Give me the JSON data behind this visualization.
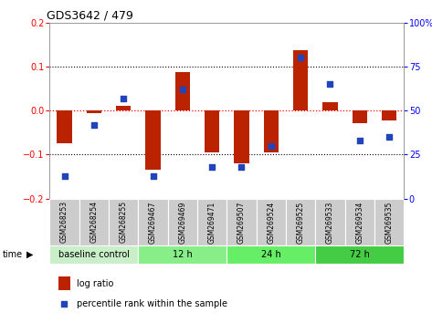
{
  "title": "GDS3642 / 479",
  "samples": [
    "GSM268253",
    "GSM268254",
    "GSM268255",
    "GSM269467",
    "GSM269469",
    "GSM269471",
    "GSM269507",
    "GSM269524",
    "GSM269525",
    "GSM269533",
    "GSM269534",
    "GSM269535"
  ],
  "log_ratio": [
    -0.075,
    -0.005,
    0.01,
    -0.135,
    0.088,
    -0.095,
    -0.12,
    -0.095,
    0.138,
    0.02,
    -0.028,
    -0.022
  ],
  "percentile_rank": [
    13,
    42,
    57,
    13,
    62,
    18,
    18,
    30,
    80,
    65,
    33,
    35
  ],
  "groups": [
    {
      "label": "baseline control",
      "start": 0,
      "end": 3,
      "color": "#c8efc8"
    },
    {
      "label": "12 h",
      "start": 3,
      "end": 6,
      "color": "#88ee88"
    },
    {
      "label": "24 h",
      "start": 6,
      "end": 9,
      "color": "#66ee66"
    },
    {
      "label": "72 h",
      "start": 9,
      "end": 12,
      "color": "#44cc44"
    }
  ],
  "ylim_left": [
    -0.2,
    0.2
  ],
  "ylim_right": [
    0,
    100
  ],
  "yticks_left": [
    -0.2,
    -0.1,
    0,
    0.1,
    0.2
  ],
  "yticks_right": [
    0,
    25,
    50,
    75,
    100
  ],
  "bar_color": "#bb2200",
  "dot_color": "#2244bb",
  "background_color": "#ffffff",
  "bar_width": 0.5,
  "label_bg": "#cccccc"
}
